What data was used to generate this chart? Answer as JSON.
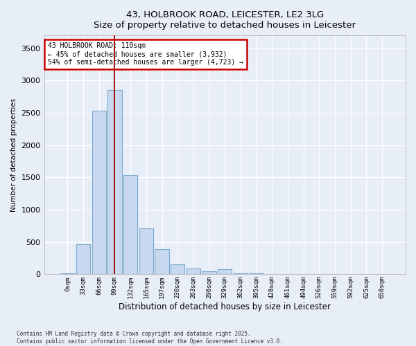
{
  "title_line1": "43, HOLBROOK ROAD, LEICESTER, LE2 3LG",
  "title_line2": "Size of property relative to detached houses in Leicester",
  "xlabel": "Distribution of detached houses by size in Leicester",
  "ylabel": "Number of detached properties",
  "bar_color": "#c8d8ee",
  "bar_edge_color": "#7aaad0",
  "background_color": "#e8eef8",
  "plot_bg_color": "#e8eef8",
  "fig_bg_color": "#e8eef8",
  "grid_color": "#ffffff",
  "annotation_box_color": "#cc0000",
  "vline_color": "#990000",
  "vline_position": 3.0,
  "annotation_text": "43 HOLBROOK ROAD: 110sqm\n← 45% of detached houses are smaller (3,932)\n54% of semi-detached houses are larger (4,723) →",
  "categories": [
    "0sqm",
    "33sqm",
    "66sqm",
    "99sqm",
    "132sqm",
    "165sqm",
    "197sqm",
    "230sqm",
    "263sqm",
    "296sqm",
    "329sqm",
    "362sqm",
    "395sqm",
    "428sqm",
    "461sqm",
    "494sqm",
    "526sqm",
    "559sqm",
    "592sqm",
    "625sqm",
    "658sqm"
  ],
  "bar_heights": [
    15,
    460,
    2530,
    2850,
    1540,
    710,
    390,
    150,
    90,
    50,
    80,
    10,
    10,
    5,
    5,
    0,
    0,
    0,
    0,
    0,
    0
  ],
  "ylim": [
    0,
    3700
  ],
  "yticks": [
    0,
    500,
    1000,
    1500,
    2000,
    2500,
    3000,
    3500
  ],
  "footer_text": "Contains HM Land Registry data © Crown copyright and database right 2025.\nContains public sector information licensed under the Open Government Licence v3.0."
}
